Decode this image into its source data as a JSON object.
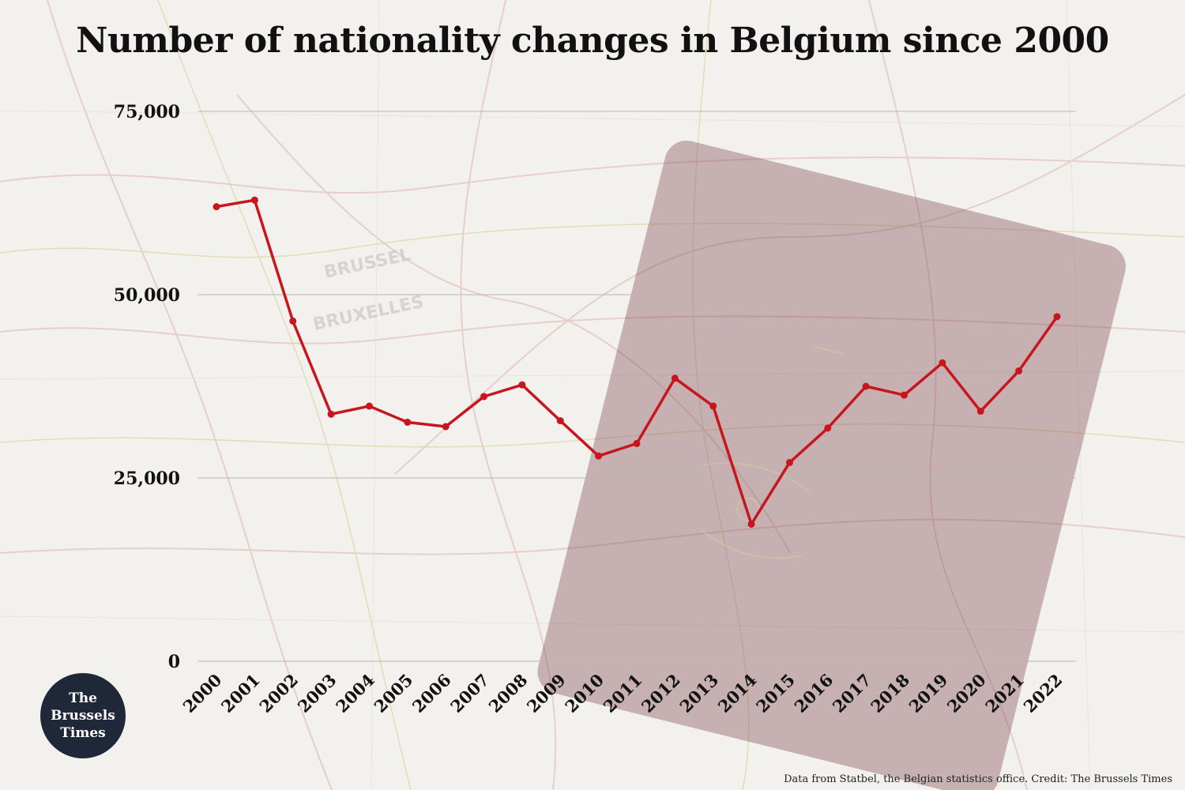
{
  "title": "Number of nationality changes in Belgium since 2000",
  "credit": "Data from Statbel, the Belgian statistics office. Credit: The Brussels Times",
  "logo": {
    "text": "The\nBrussels\nTimes"
  },
  "colors": {
    "line": "#c8161d",
    "grid": "#b9b5b3",
    "text": "#111111",
    "logo_bg": "#1f2838"
  },
  "background": {
    "map_text": [
      "BRUSSEL",
      "BRUXELLES"
    ]
  },
  "chart_data": {
    "type": "line",
    "title": "Number of nationality changes in Belgium since 2000",
    "xlabel": "",
    "ylabel": "",
    "ylim": [
      0,
      75000
    ],
    "yticks": [
      0,
      25000,
      50000,
      75000
    ],
    "ytick_labels": [
      "0",
      "25,000",
      "50,000",
      "75,000"
    ],
    "grid": true,
    "categories": [
      "2000",
      "2001",
      "2002",
      "2003",
      "2004",
      "2005",
      "2006",
      "2007",
      "2008",
      "2009",
      "2010",
      "2011",
      "2012",
      "2013",
      "2014",
      "2015",
      "2016",
      "2017",
      "2018",
      "2019",
      "2020",
      "2021",
      "2022"
    ],
    "series": [
      {
        "values": [
          62000,
          62900,
          46400,
          33700,
          34800,
          32600,
          32000,
          36100,
          37700,
          32800,
          28000,
          29700,
          38600,
          34800,
          18700,
          27100,
          31800,
          37500,
          36300,
          40700,
          34100,
          39600,
          47000
        ]
      }
    ]
  }
}
